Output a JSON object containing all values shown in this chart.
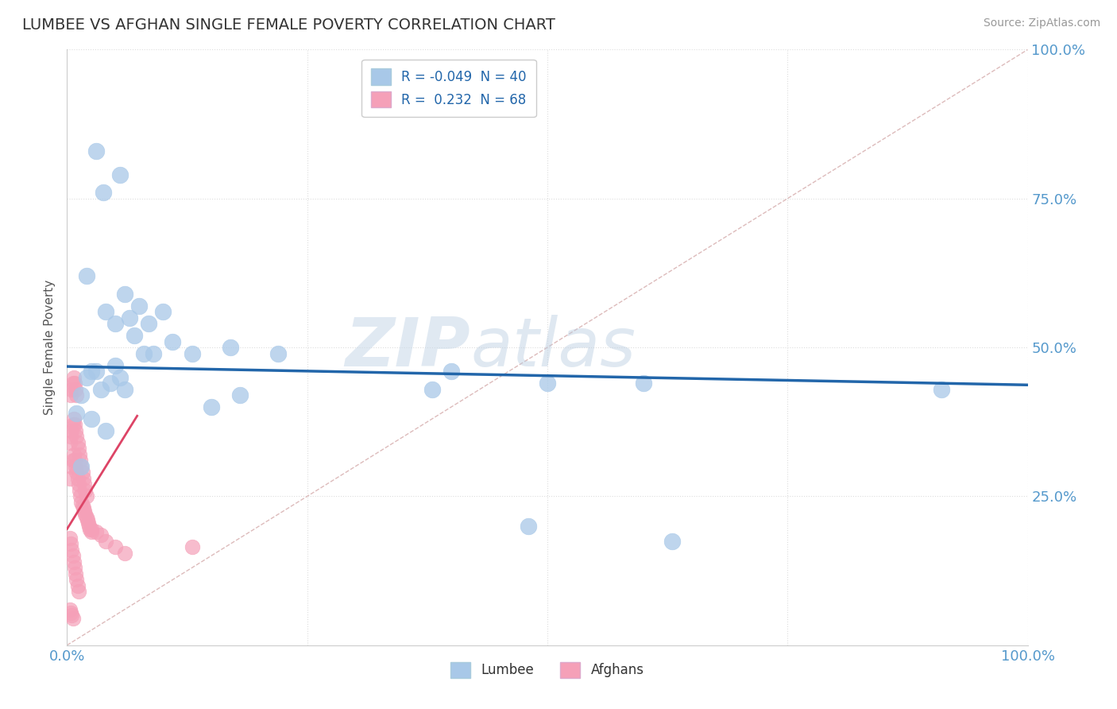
{
  "title": "LUMBEE VS AFGHAN SINGLE FEMALE POVERTY CORRELATION CHART",
  "source": "Source: ZipAtlas.com",
  "ylabel": "Single Female Poverty",
  "watermark": "ZIPatlas",
  "lumbee_R": -0.049,
  "lumbee_N": 40,
  "afghan_R": 0.232,
  "afghan_N": 68,
  "lumbee_color": "#a8c8e8",
  "afghan_color": "#f5a0b8",
  "lumbee_line_color": "#2266aa",
  "afghan_line_color": "#dd4466",
  "diagonal_color": "#ddbbbb",
  "background_color": "#ffffff",
  "grid_color": "#dddddd",
  "lumbee_x": [
    0.03,
    0.055,
    0.038,
    0.02,
    0.06,
    0.04,
    0.075,
    0.085,
    0.1,
    0.05,
    0.065,
    0.07,
    0.08,
    0.09,
    0.11,
    0.13,
    0.17,
    0.22,
    0.05,
    0.03,
    0.025,
    0.02,
    0.015,
    0.035,
    0.045,
    0.055,
    0.06,
    0.4,
    0.5,
    0.6,
    0.15,
    0.18,
    0.01,
    0.025,
    0.04,
    0.38,
    0.91,
    0.48,
    0.63,
    0.015
  ],
  "lumbee_y": [
    0.83,
    0.79,
    0.76,
    0.62,
    0.59,
    0.56,
    0.57,
    0.54,
    0.56,
    0.54,
    0.55,
    0.52,
    0.49,
    0.49,
    0.51,
    0.49,
    0.5,
    0.49,
    0.47,
    0.46,
    0.46,
    0.45,
    0.42,
    0.43,
    0.44,
    0.45,
    0.43,
    0.46,
    0.44,
    0.44,
    0.4,
    0.42,
    0.39,
    0.38,
    0.36,
    0.43,
    0.43,
    0.2,
    0.175,
    0.3
  ],
  "afghan_x": [
    0.003,
    0.005,
    0.006,
    0.007,
    0.008,
    0.009,
    0.01,
    0.011,
    0.012,
    0.013,
    0.014,
    0.015,
    0.016,
    0.017,
    0.018,
    0.019,
    0.02,
    0.021,
    0.022,
    0.023,
    0.024,
    0.025,
    0.003,
    0.004,
    0.005,
    0.006,
    0.007,
    0.008,
    0.009,
    0.01,
    0.011,
    0.012,
    0.013,
    0.014,
    0.015,
    0.016,
    0.017,
    0.018,
    0.019,
    0.02,
    0.004,
    0.005,
    0.006,
    0.007,
    0.008,
    0.009,
    0.01,
    0.003,
    0.004,
    0.005,
    0.006,
    0.007,
    0.008,
    0.009,
    0.01,
    0.011,
    0.012,
    0.025,
    0.03,
    0.035,
    0.04,
    0.05,
    0.06,
    0.003,
    0.004,
    0.005,
    0.006,
    0.13
  ],
  "afghan_y": [
    0.28,
    0.3,
    0.31,
    0.32,
    0.31,
    0.3,
    0.29,
    0.28,
    0.27,
    0.26,
    0.25,
    0.24,
    0.235,
    0.23,
    0.225,
    0.22,
    0.215,
    0.21,
    0.205,
    0.2,
    0.195,
    0.19,
    0.34,
    0.35,
    0.36,
    0.37,
    0.38,
    0.37,
    0.36,
    0.35,
    0.34,
    0.33,
    0.32,
    0.31,
    0.3,
    0.29,
    0.28,
    0.27,
    0.26,
    0.25,
    0.42,
    0.43,
    0.44,
    0.45,
    0.44,
    0.43,
    0.42,
    0.18,
    0.17,
    0.16,
    0.15,
    0.14,
    0.13,
    0.12,
    0.11,
    0.1,
    0.09,
    0.195,
    0.19,
    0.185,
    0.175,
    0.165,
    0.155,
    0.06,
    0.055,
    0.05,
    0.045,
    0.165
  ],
  "lumbee_line_x": [
    0.0,
    1.0
  ],
  "lumbee_line_y": [
    0.468,
    0.437
  ],
  "afghan_line_x": [
    0.0,
    0.073
  ],
  "afghan_line_y": [
    0.195,
    0.385
  ],
  "xlim": [
    0.0,
    1.0
  ],
  "ylim": [
    0.0,
    1.0
  ],
  "xticks": [
    0.0,
    0.25,
    0.5,
    0.75,
    1.0
  ],
  "yticks": [
    0.0,
    0.25,
    0.5,
    0.75,
    1.0
  ],
  "xticklabels": [
    "0.0%",
    "",
    "",
    "",
    "100.0%"
  ],
  "yticklabels": [
    "",
    "25.0%",
    "50.0%",
    "75.0%",
    "100.0%"
  ],
  "title_color": "#333333",
  "tick_label_color": "#5599cc"
}
